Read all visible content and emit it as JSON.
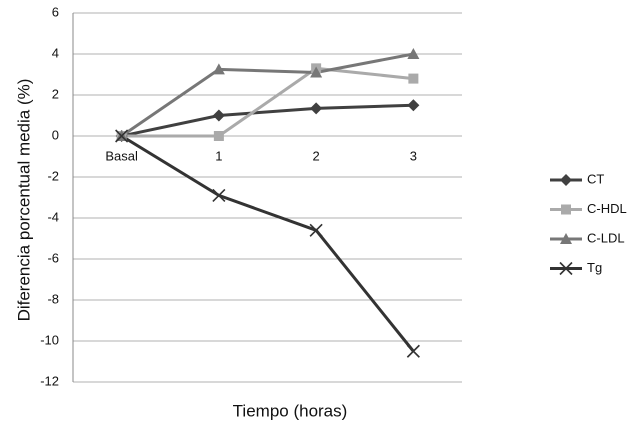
{
  "chart_data": {
    "type": "line",
    "y_label": "Diferencia  porcentual media (%)",
    "x_label": "Tiempo (horas)",
    "categories": [
      "Basal",
      "1",
      "2",
      "3"
    ],
    "series": [
      {
        "name": "CT",
        "color": "#404040",
        "marker": "diamond",
        "values": [
          0,
          1.0,
          1.35,
          1.5
        ]
      },
      {
        "name": "C-HDL",
        "color": "#aaaaaa",
        "marker": "square",
        "values": [
          0,
          0,
          3.3,
          2.8
        ]
      },
      {
        "name": "C-LDL",
        "color": "#777777",
        "marker": "triangle",
        "values": [
          0,
          3.25,
          3.1,
          4.0
        ]
      },
      {
        "name": "Tg",
        "color": "#333333",
        "marker": "x",
        "values": [
          0,
          -2.9,
          -4.6,
          -10.5
        ]
      }
    ],
    "ylim": [
      -12,
      6
    ],
    "yticks": [
      -12,
      -10,
      -8,
      -6,
      -4,
      -2,
      0,
      2,
      4,
      6
    ],
    "grid": true,
    "legend": "right"
  }
}
